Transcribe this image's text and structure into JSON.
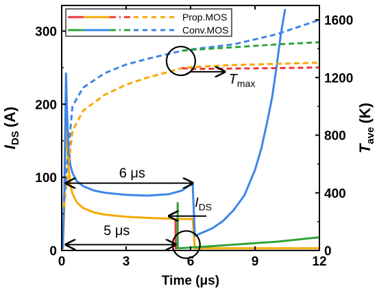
{
  "chart_data": {
    "type": "line",
    "x_axis": {
      "label": "Time (μs)",
      "range": [
        0,
        12
      ],
      "ticks": [
        "0",
        "3",
        "6",
        "9",
        "12"
      ]
    },
    "y_left": {
      "label_main": "I",
      "label_sub": "DS",
      "label_unit": "(A)",
      "range": [
        0,
        335
      ],
      "ticks": [
        "0",
        "100",
        "200",
        "300"
      ]
    },
    "y_right": {
      "label_main": "T",
      "label_sub": "ave",
      "label_unit": "(K)",
      "range": [
        0,
        1700
      ],
      "ticks": [
        "0",
        "400",
        "800",
        "1200",
        "1600"
      ]
    },
    "legend": {
      "position": "top-left",
      "entries": [
        {
          "name": "Prop.MOS",
          "colors": [
            "#e8373b",
            "#f5a800"
          ]
        },
        {
          "name": "Conv.MOS",
          "colors": [
            "#2fa33a",
            "#3d85e8"
          ]
        }
      ]
    },
    "series": [
      {
        "name": "Prop.MOS",
        "quantity": "I_DS",
        "axis": "left",
        "color": "#f5a800",
        "x": [
          0.05,
          0.12,
          0.2,
          0.25,
          0.3,
          0.4,
          0.5,
          0.7,
          1.0,
          1.5,
          2.0,
          3.0,
          4.0,
          5.0,
          5.3,
          5.3,
          6.0,
          6.1,
          6.2,
          7,
          9,
          12
        ],
        "y": [
          2,
          60,
          185,
          155,
          120,
          90,
          78,
          66,
          58,
          52,
          49,
          46,
          44.5,
          43.5,
          43,
          43,
          43,
          43,
          3,
          3,
          3,
          3
        ]
      },
      {
        "name": "Conv.MOS",
        "quantity": "I_DS",
        "axis": "left",
        "color": "#3d85e8",
        "x": [
          0.05,
          0.12,
          0.2,
          0.25,
          0.3,
          0.4,
          0.5,
          0.7,
          1.0,
          1.5,
          2,
          3,
          4,
          5,
          5.6,
          6.0,
          6.1,
          6.2,
          6.6,
          7,
          7.5,
          8,
          8.5,
          9,
          9.3,
          9.6,
          9.8,
          10.0,
          10.2,
          10.4
        ],
        "y": [
          2,
          80,
          242,
          190,
          150,
          117,
          106,
          95,
          88,
          82,
          79,
          76,
          75,
          77,
          82,
          90,
          90,
          20,
          25,
          30,
          40,
          55,
          75,
          110,
          140,
          180,
          210,
          250,
          295,
          330
        ]
      },
      {
        "name": "Prop.MOS",
        "quantity": "T_ave",
        "axis": "right",
        "color": "#f5a800",
        "x": [
          0.1,
          0.5,
          1,
          2,
          3,
          4,
          5,
          5.6,
          6,
          8,
          10,
          12
        ],
        "y": [
          300,
          830,
          970,
          1080,
          1150,
          1200,
          1240,
          1265,
          1272,
          1287,
          1295,
          1303
        ]
      },
      {
        "name": "Prop.MOS",
        "quantity": "T_ave",
        "axis": "right",
        "color": "#e8373b",
        "x": [
          5.6,
          6,
          8,
          10,
          12
        ],
        "y": [
          1265,
          1260,
          1262,
          1265,
          1270
        ]
      },
      {
        "name": "Conv.MOS",
        "quantity": "T_ave",
        "axis": "right",
        "color": "#3d85e8",
        "x": [
          0.1,
          0.5,
          1,
          2,
          3,
          4,
          5,
          5.6,
          6,
          8,
          10,
          12
        ],
        "y": [
          350,
          1000,
          1130,
          1230,
          1290,
          1330,
          1365,
          1385,
          1395,
          1430,
          1500,
          1600
        ]
      },
      {
        "name": "Conv.MOS",
        "quantity": "T_ave",
        "axis": "right",
        "color": "#2fa33a",
        "x": [
          5.6,
          6,
          8,
          10,
          12
        ],
        "y": [
          1385,
          1392,
          1410,
          1430,
          1445
        ]
      },
      {
        "name": "Prop.MOS",
        "quantity": "I_DS",
        "axis": "left",
        "color": "#e8373b",
        "x": [
          5.3,
          5.3,
          5.4
        ],
        "y": [
          43,
          3,
          3
        ]
      },
      {
        "name": "Conv.MOS",
        "quantity": "I_DS",
        "axis": "left",
        "color": "#2fa33a",
        "x": [
          5.4,
          5.4,
          5.5,
          6.5,
          8,
          10,
          12
        ],
        "y": [
          66,
          3,
          3,
          5,
          8,
          12,
          18
        ]
      }
    ],
    "annotations": [
      {
        "text": "6 μs",
        "x_from": 0.2,
        "x_to": 6.1,
        "y": 92
      },
      {
        "text": "5 μs",
        "x_from": 0.2,
        "x_to": 5.3,
        "y": 8
      },
      {
        "text_main": "I",
        "text_sub": "DS",
        "x": 6.1,
        "y": 48
      },
      {
        "text_main": "T",
        "text_sub": "max",
        "x": 6.5,
        "y_right": 1240
      }
    ]
  }
}
